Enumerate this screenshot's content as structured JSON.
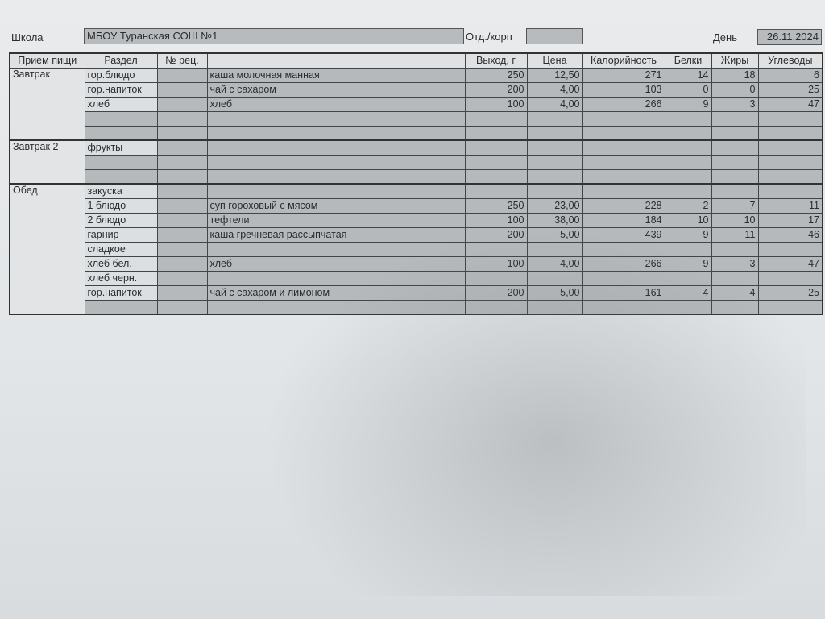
{
  "header": {
    "school_label": "Школа",
    "school_value": "МБОУ Туранская СОШ №1",
    "dept_label": "Отд./корп",
    "dept_value": "",
    "day_label": "День",
    "day_value": "26.11.2024"
  },
  "table": {
    "columns": [
      "Прием пищи",
      "Раздел",
      "№ рец.",
      "",
      "Выход, г",
      "Цена",
      "Калорийность",
      "Белки",
      "Жиры",
      "Углеводы"
    ],
    "groups": [
      {
        "meal": "Завтрак",
        "rows": [
          {
            "section": "гор.блюдо",
            "recipe": "",
            "dish": "каша молочная манная",
            "yield": "250",
            "price": "12,50",
            "kcal": "271",
            "protein": "14",
            "fat": "18",
            "carbs": "6"
          },
          {
            "section": "гор.напиток",
            "recipe": "",
            "dish": "чай с сахаром",
            "yield": "200",
            "price": "4,00",
            "kcal": "103",
            "protein": "0",
            "fat": "0",
            "carbs": "25"
          },
          {
            "section": "хлеб",
            "recipe": "",
            "dish": "хлеб",
            "yield": "100",
            "price": "4,00",
            "kcal": "266",
            "protein": "9",
            "fat": "3",
            "carbs": "47"
          },
          {
            "section": "",
            "recipe": "",
            "dish": "",
            "yield": "",
            "price": "",
            "kcal": "",
            "protein": "",
            "fat": "",
            "carbs": ""
          },
          {
            "section": "",
            "recipe": "",
            "dish": "",
            "yield": "",
            "price": "",
            "kcal": "",
            "protein": "",
            "fat": "",
            "carbs": ""
          }
        ]
      },
      {
        "meal": "Завтрак 2",
        "rows": [
          {
            "section": "фрукты",
            "recipe": "",
            "dish": "",
            "yield": "",
            "price": "",
            "kcal": "",
            "protein": "",
            "fat": "",
            "carbs": ""
          },
          {
            "section": "",
            "recipe": "",
            "dish": "",
            "yield": "",
            "price": "",
            "kcal": "",
            "protein": "",
            "fat": "",
            "carbs": ""
          },
          {
            "section": "",
            "recipe": "",
            "dish": "",
            "yield": "",
            "price": "",
            "kcal": "",
            "protein": "",
            "fat": "",
            "carbs": ""
          }
        ]
      },
      {
        "meal": "Обед",
        "rows": [
          {
            "section": "закуска",
            "recipe": "",
            "dish": "",
            "yield": "",
            "price": "",
            "kcal": "",
            "protein": "",
            "fat": "",
            "carbs": ""
          },
          {
            "section": "1 блюдо",
            "recipe": "",
            "dish": "суп гороховый с мясом",
            "yield": "250",
            "price": "23,00",
            "kcal": "228",
            "protein": "2",
            "fat": "7",
            "carbs": "11"
          },
          {
            "section": "2 блюдо",
            "recipe": "",
            "dish": "тефтели",
            "yield": "100",
            "price": "38,00",
            "kcal": "184",
            "protein": "10",
            "fat": "10",
            "carbs": "17"
          },
          {
            "section": "гарнир",
            "recipe": "",
            "dish": "каша гречневая рассыпчатая",
            "yield": "200",
            "price": "5,00",
            "kcal": "439",
            "protein": "9",
            "fat": "11",
            "carbs": "46"
          },
          {
            "section": "сладкое",
            "recipe": "",
            "dish": "",
            "yield": "",
            "price": "",
            "kcal": "",
            "protein": "",
            "fat": "",
            "carbs": ""
          },
          {
            "section": "хлеб бел.",
            "recipe": "",
            "dish": "хлеб",
            "yield": "100",
            "price": "4,00",
            "kcal": "266",
            "protein": "9",
            "fat": "3",
            "carbs": "47"
          },
          {
            "section": "хлеб черн.",
            "recipe": "",
            "dish": "",
            "yield": "",
            "price": "",
            "kcal": "",
            "protein": "",
            "fat": "",
            "carbs": ""
          },
          {
            "section": "гор.напиток",
            "recipe": "",
            "dish": "чай с сахаром и лимоном",
            "yield": "200",
            "price": "5,00",
            "kcal": "161",
            "protein": "4",
            "fat": "4",
            "carbs": "25"
          },
          {
            "section": "",
            "recipe": "",
            "dish": "",
            "yield": "",
            "price": "",
            "kcal": "",
            "protein": "",
            "fat": "",
            "carbs": ""
          }
        ]
      }
    ]
  }
}
